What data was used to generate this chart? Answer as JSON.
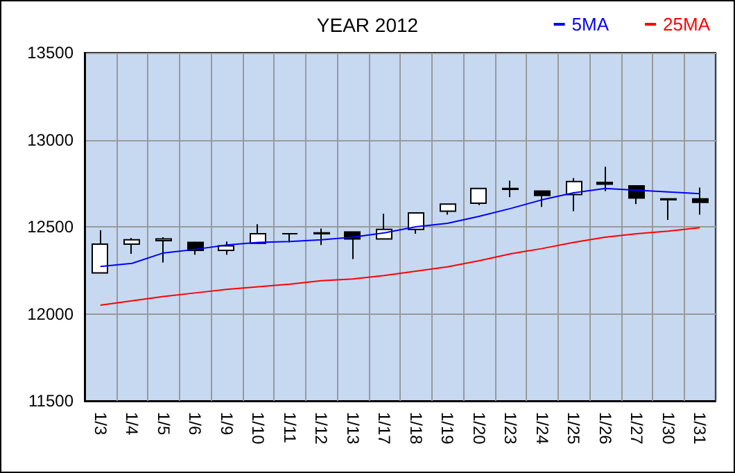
{
  "chart_data": {
    "type": "candlestick",
    "title": "YEAR 2012",
    "categories": [
      "1/3",
      "1/4",
      "1/5",
      "1/6",
      "1/9",
      "1/10",
      "1/11",
      "1/12",
      "1/13",
      "1/17",
      "1/18",
      "1/19",
      "1/20",
      "1/23",
      "1/24",
      "1/25",
      "1/26",
      "1/27",
      "1/30",
      "1/31"
    ],
    "ohlc": [
      [
        12235,
        12480,
        12235,
        12400
      ],
      [
        12400,
        12435,
        12345,
        12425
      ],
      [
        12420,
        12440,
        12295,
        12430
      ],
      [
        12410,
        12415,
        12340,
        12365
      ],
      [
        12365,
        12415,
        12340,
        12390
      ],
      [
        12405,
        12515,
        12405,
        12460
      ],
      [
        12460,
        12460,
        12410,
        12460
      ],
      [
        12465,
        12490,
        12395,
        12460
      ],
      [
        12470,
        12470,
        12315,
        12430
      ],
      [
        12430,
        12575,
        12430,
        12485
      ],
      [
        12485,
        12580,
        12460,
        12580
      ],
      [
        12590,
        12630,
        12570,
        12630
      ],
      [
        12635,
        12720,
        12625,
        12720
      ],
      [
        12715,
        12765,
        12670,
        12720
      ],
      [
        12705,
        12705,
        12615,
        12680
      ],
      [
        12685,
        12780,
        12590,
        12760
      ],
      [
        12755,
        12845,
        12705,
        12745
      ],
      [
        12735,
        12735,
        12630,
        12665
      ],
      [
        12660,
        12660,
        12540,
        12655
      ],
      [
        12660,
        12725,
        12570,
        12640
      ]
    ],
    "series": [
      {
        "name": "5MA",
        "type": "line",
        "color": "#0000ff",
        "values": [
          12272,
          12290,
          12350,
          12370,
          12395,
          12410,
          12415,
          12425,
          12440,
          12465,
          12500,
          12520,
          12560,
          12605,
          12655,
          12695,
          12720,
          12710,
          12700,
          12690
        ]
      },
      {
        "name": "25MA",
        "type": "line",
        "color": "#ff0000",
        "values": [
          12050,
          12075,
          12100,
          12120,
          12140,
          12155,
          12170,
          12190,
          12200,
          12220,
          12245,
          12270,
          12305,
          12345,
          12375,
          12410,
          12440,
          12460,
          12475,
          12495
        ]
      }
    ],
    "ylim": [
      11500,
      13500
    ],
    "yticks": [
      11500,
      12000,
      12500,
      13000,
      13500
    ],
    "grid": true,
    "legend": "top right",
    "marker": "none",
    "line_style": "solid"
  }
}
